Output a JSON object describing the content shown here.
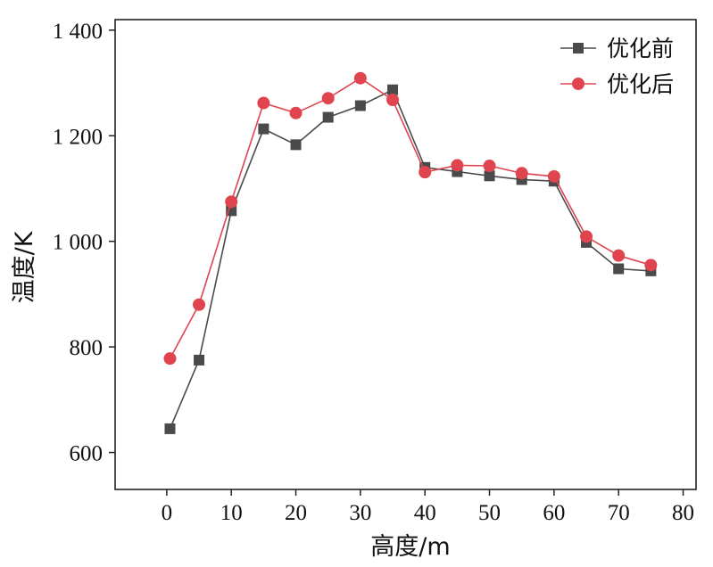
{
  "chart_data": {
    "type": "line",
    "title": "",
    "xlabel": "高度/m",
    "ylabel": "温度/K",
    "xlim": [
      -8,
      82
    ],
    "ylim": [
      530,
      1420
    ],
    "xticks": [
      0,
      10,
      20,
      30,
      40,
      50,
      60,
      70,
      80
    ],
    "xtick_labels": [
      "0",
      "10",
      "20",
      "30",
      "40",
      "50",
      "60",
      "70",
      "80"
    ],
    "yticks": [
      600,
      800,
      1000,
      1200,
      1400
    ],
    "ytick_labels": [
      "600",
      "800",
      "1 000",
      "1 200",
      "1 400"
    ],
    "grid": false,
    "legend_position": "top-right",
    "x": [
      0.5,
      5,
      10,
      15,
      20,
      25,
      30,
      35,
      40,
      45,
      50,
      55,
      60,
      65,
      70,
      75
    ],
    "series": [
      {
        "name": "优化前",
        "marker": "square",
        "color": "#4a4a4a",
        "values": [
          645,
          775,
          1058,
          1213,
          1183,
          1235,
          1257,
          1287,
          1140,
          1132,
          1124,
          1117,
          1114,
          998,
          948,
          944
        ]
      },
      {
        "name": "优化后",
        "marker": "circle",
        "color": "#e0454f",
        "values": [
          778,
          880,
          1075,
          1262,
          1243,
          1271,
          1309,
          1268,
          1131,
          1144,
          1143,
          1129,
          1123,
          1009,
          973,
          955
        ]
      }
    ]
  }
}
